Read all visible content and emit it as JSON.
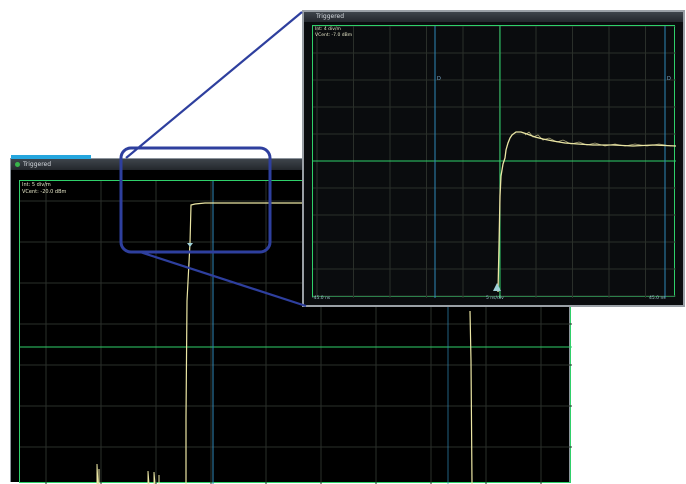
{
  "colors": {
    "grid": "#2a2f2a",
    "axis": "#2fd06a",
    "cursor": "#2f88b8",
    "trace": "#ebe6a4",
    "zoom_box": "#2e3f9e",
    "title_accent": "#25a6de"
  },
  "main_window": {
    "title": "Triggered",
    "status_icon": "green-dot-icon",
    "readout_line1": "Int: 5 div/m",
    "readout_line2": "VCent: -20.0 dBm"
  },
  "zoom_window": {
    "title": "Triggered",
    "readout_line1": "Int: 4 div/m",
    "readout_line2": "VCent: -7.0 dBm",
    "cursor_label": "D",
    "bottom_left": "-45.0 ns",
    "bottom_center": "5 ns/div",
    "bottom_right": "45.0 ns",
    "trigger_marker": "trigger-arrow-icon"
  }
}
